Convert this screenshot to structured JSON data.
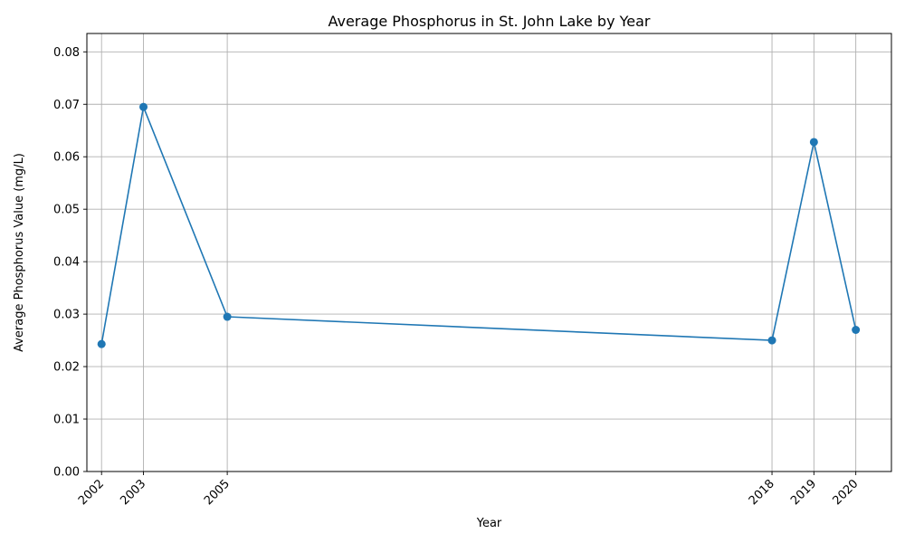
{
  "chart_data": {
    "type": "line",
    "title": "Average Phosphorus in St. John Lake by Year",
    "xlabel": "Year",
    "ylabel": "Average Phosphorus Value (mg/L)",
    "x": [
      2002,
      2003,
      2005,
      2018,
      2019,
      2020
    ],
    "x_tick_labels": [
      "2002",
      "2003",
      "2005",
      "2018",
      "2019",
      "2020"
    ],
    "series": [
      {
        "values": [
          0.0243,
          0.0695,
          0.0295,
          0.025,
          0.0628,
          0.027
        ]
      }
    ],
    "xlim": [
      2001.65,
      2020.85
    ],
    "ylim": [
      0,
      0.0835
    ],
    "y_ticks": [
      0.0,
      0.01,
      0.02,
      0.03,
      0.04,
      0.05,
      0.06,
      0.07,
      0.08
    ],
    "y_tick_labels": [
      "0.00",
      "0.01",
      "0.02",
      "0.03",
      "0.04",
      "0.05",
      "0.06",
      "0.07",
      "0.08"
    ],
    "grid": true,
    "color": "#1f77b4"
  }
}
